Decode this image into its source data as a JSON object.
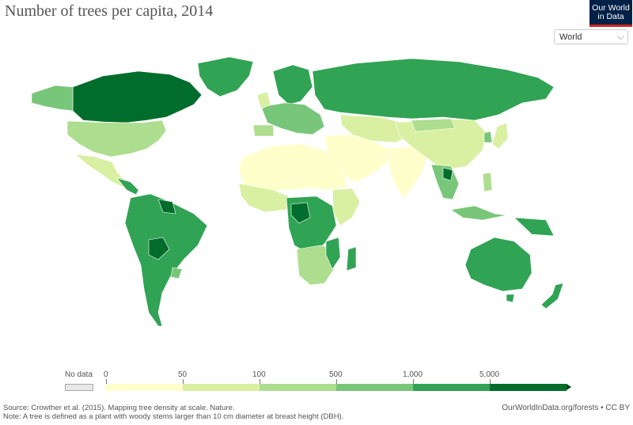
{
  "header": {
    "title": "Number of trees per capita, 2014",
    "logo_line1": "Our World",
    "logo_line2": "in Data"
  },
  "controls": {
    "region_select": "World"
  },
  "legend": {
    "no_data_label": "No data",
    "bins": [
      {
        "from": "0",
        "to": "50",
        "color": "#ffffcc"
      },
      {
        "from": "50",
        "to": "100",
        "color": "#d9f0a3"
      },
      {
        "from": "100",
        "to": "500",
        "color": "#addd8e"
      },
      {
        "from": "500",
        "to": "1,000",
        "color": "#78c679"
      },
      {
        "from": "1,000",
        "to": "5,000",
        "color": "#31a354"
      },
      {
        "from": "5,000",
        "to": "",
        "color": "#006d2c"
      }
    ],
    "labels": [
      "0",
      "50",
      "100",
      "500",
      "1,000",
      "5,000"
    ],
    "no_data_color": "#e8e8e8"
  },
  "footer": {
    "source": "Source: Crowther et al. (2015). Mapping tree density at scale. Nature.",
    "note": "Note: A tree is defined as a plant with woody stems larger than 10 cm diameter at breast height (DBH).",
    "url": "OurWorldInData.org/forests • CC BY"
  },
  "map_colors": {
    "bin0": "#ffffcc",
    "bin1": "#d9f0a3",
    "bin2": "#addd8e",
    "bin3": "#78c679",
    "bin4": "#31a354",
    "bin5": "#006d2c"
  }
}
